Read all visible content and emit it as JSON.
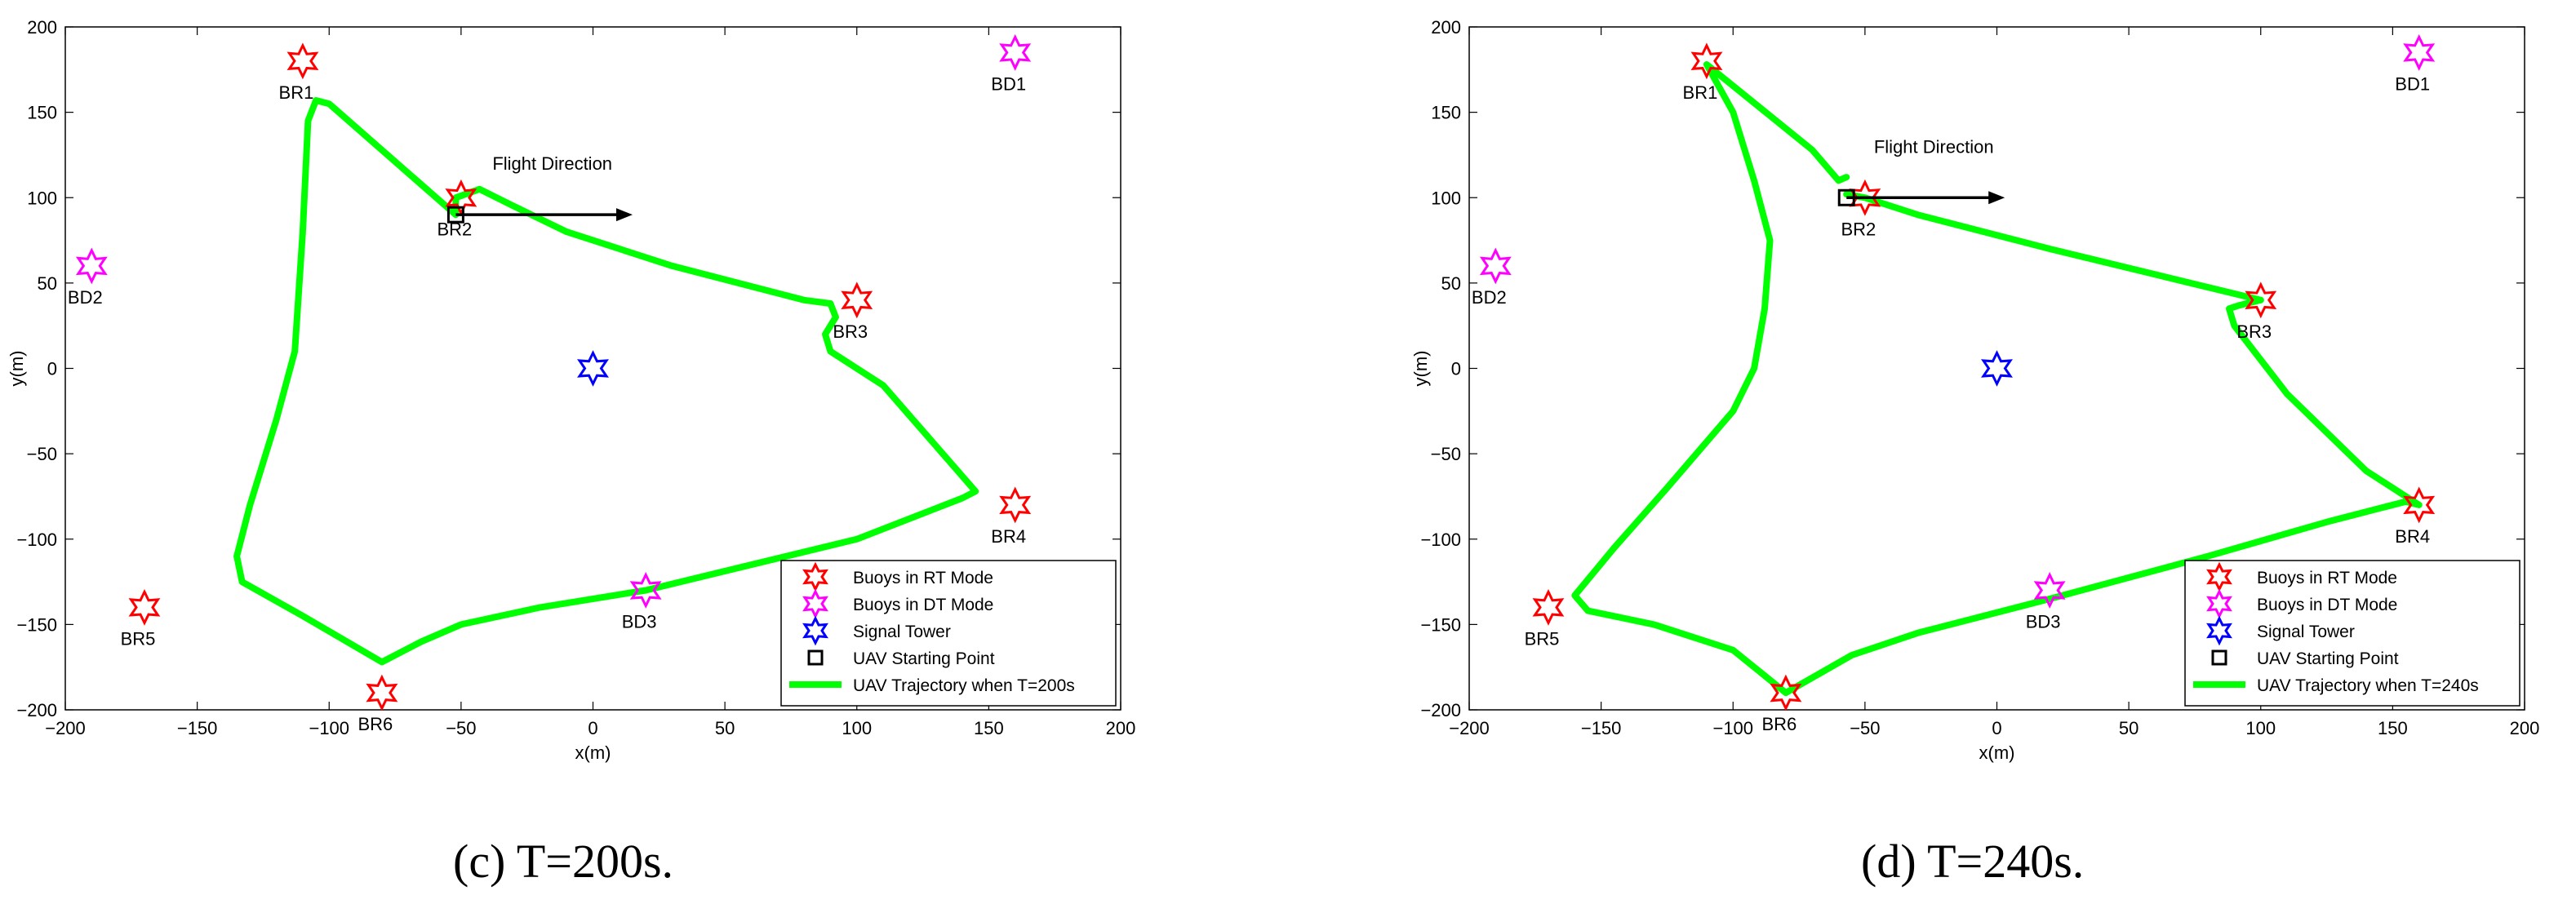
{
  "colors": {
    "rt": "#ff0000",
    "dt": "#ff00ff",
    "tower": "#0000ff",
    "trajectory": "#00ff00",
    "start": "#000000",
    "arrow": "#000000"
  },
  "captions": [
    "(c)  T=200s.",
    "(d)  T=240s."
  ],
  "chart_data": [
    {
      "type": "line",
      "xlabel": "x(m)",
      "ylabel": "y(m)",
      "xlim": [
        -200,
        200
      ],
      "ylim": [
        -200,
        200
      ],
      "xticks": [
        "−200",
        "−150",
        "−100",
        "−50",
        "0",
        "50",
        "100",
        "150",
        "200"
      ],
      "yticks": [
        "200",
        "150",
        "100",
        "50",
        "0",
        "−50",
        "−100",
        "−150",
        "−200"
      ],
      "grid": false,
      "legend_position": "bottom-right",
      "legend": [
        "Buoys in RT Mode",
        "Buoys in DT Mode",
        "Signal Tower",
        "UAV Starting Point",
        "UAV Trajectory when T=200s"
      ],
      "annotation": {
        "text": "Flight Direction",
        "from": [
          -52,
          90
        ],
        "to": [
          15,
          90
        ]
      },
      "buoys_rt": [
        {
          "name": "BR1",
          "x": -110,
          "y": 180
        },
        {
          "name": "BR2",
          "x": -50,
          "y": 100
        },
        {
          "name": "BR3",
          "x": 100,
          "y": 40
        },
        {
          "name": "BR4",
          "x": 160,
          "y": -80
        },
        {
          "name": "BR5",
          "x": -170,
          "y": -140
        },
        {
          "name": "BR6",
          "x": -80,
          "y": -190
        }
      ],
      "buoys_dt": [
        {
          "name": "BD1",
          "x": 160,
          "y": 185
        },
        {
          "name": "BD2",
          "x": -190,
          "y": 60
        },
        {
          "name": "BD3",
          "x": 20,
          "y": -130
        }
      ],
      "tower": {
        "x": 0,
        "y": 0
      },
      "start": {
        "x": -52,
        "y": 90
      },
      "trajectory": [
        [
          -52,
          90
        ],
        [
          -100,
          155
        ],
        [
          -105,
          157
        ],
        [
          -108,
          145
        ],
        [
          -110,
          80
        ],
        [
          -113,
          10
        ],
        [
          -120,
          -30
        ],
        [
          -130,
          -80
        ],
        [
          -135,
          -110
        ],
        [
          -133,
          -125
        ],
        [
          -110,
          -145
        ],
        [
          -80,
          -172
        ],
        [
          -65,
          -160
        ],
        [
          -50,
          -150
        ],
        [
          -20,
          -140
        ],
        [
          20,
          -130
        ],
        [
          100,
          -100
        ],
        [
          140,
          -76
        ],
        [
          145,
          -72
        ],
        [
          110,
          -10
        ],
        [
          90,
          10
        ],
        [
          88,
          20
        ],
        [
          92,
          30
        ],
        [
          90,
          38
        ],
        [
          80,
          40
        ],
        [
          30,
          60
        ],
        [
          -10,
          80
        ],
        [
          -30,
          95
        ],
        [
          -43,
          105
        ],
        [
          -52,
          100
        ],
        [
          -52,
          90
        ]
      ]
    },
    {
      "type": "line",
      "xlabel": "x(m)",
      "ylabel": "y(m)",
      "xlim": [
        -200,
        200
      ],
      "ylim": [
        -200,
        200
      ],
      "xticks": [
        "−200",
        "−150",
        "−100",
        "−50",
        "0",
        "50",
        "100",
        "150",
        "200"
      ],
      "yticks": [
        "200",
        "150",
        "100",
        "50",
        "0",
        "−50",
        "−100",
        "−150",
        "−200"
      ],
      "grid": false,
      "legend_position": "bottom-right",
      "legend": [
        "Buoys in RT Mode",
        "Buoys in DT Mode",
        "Signal Tower",
        "UAV Starting Point",
        "UAV Trajectory when T=240s"
      ],
      "annotation": {
        "text": "Flight Direction",
        "from": [
          -57,
          100
        ],
        "to": [
          3,
          100
        ]
      },
      "buoys_rt": [
        {
          "name": "BR1",
          "x": -110,
          "y": 180
        },
        {
          "name": "BR2",
          "x": -50,
          "y": 100
        },
        {
          "name": "BR3",
          "x": 100,
          "y": 40
        },
        {
          "name": "BR4",
          "x": 160,
          "y": -80
        },
        {
          "name": "BR5",
          "x": -170,
          "y": -140
        },
        {
          "name": "BR6",
          "x": -80,
          "y": -190
        }
      ],
      "buoys_dt": [
        {
          "name": "BD1",
          "x": 160,
          "y": 185
        },
        {
          "name": "BD2",
          "x": -190,
          "y": 60
        },
        {
          "name": "BD3",
          "x": 20,
          "y": -130
        }
      ],
      "tower": {
        "x": 0,
        "y": 0
      },
      "start": {
        "x": -57,
        "y": 100
      },
      "trajectory": [
        [
          -57,
          112
        ],
        [
          -60,
          110
        ],
        [
          -70,
          128
        ],
        [
          -110,
          178
        ],
        [
          -100,
          150
        ],
        [
          -92,
          110
        ],
        [
          -86,
          75
        ],
        [
          -88,
          35
        ],
        [
          -92,
          0
        ],
        [
          -100,
          -25
        ],
        [
          -125,
          -70
        ],
        [
          -145,
          -105
        ],
        [
          -160,
          -133
        ],
        [
          -155,
          -142
        ],
        [
          -130,
          -150
        ],
        [
          -100,
          -165
        ],
        [
          -80,
          -190
        ],
        [
          -55,
          -168
        ],
        [
          -30,
          -155
        ],
        [
          20,
          -135
        ],
        [
          80,
          -110
        ],
        [
          125,
          -90
        ],
        [
          155,
          -78
        ],
        [
          160,
          -80
        ],
        [
          140,
          -60
        ],
        [
          110,
          -15
        ],
        [
          90,
          25
        ],
        [
          88,
          35
        ],
        [
          92,
          37
        ],
        [
          100,
          40
        ],
        [
          60,
          55
        ],
        [
          20,
          70
        ],
        [
          -30,
          90
        ],
        [
          -50,
          100
        ],
        [
          -57,
          102
        ]
      ]
    }
  ]
}
